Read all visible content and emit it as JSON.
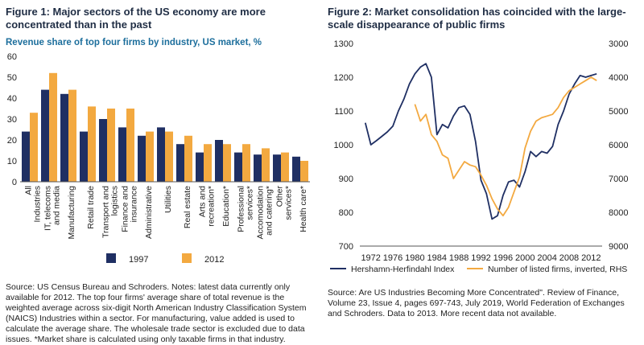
{
  "fig1": {
    "title": "Figure 1: Major sectors of the US economy are more concentrated than in the past",
    "subtitle": "Revenue share of top four firms by industry, US market, %",
    "source": "Source: US Census Bureau and Schroders. Notes: latest data currently only available for 2012. The top four firms' average share of total revenue is the weighted average across six-digit North American Industry Classification System (NAICS) Industries within a sector. For manufacturing, value added is used to calculate the average share. The wholesale trade sector is excluded due to data issues. *Market share is calculated using only taxable firms in that industry."
  },
  "fig2": {
    "title": "Figure 2: Market consolidation has coincided with the large-scale disappearance of public firms",
    "source": "Source: Are US Industries Becoming More Concentrated\". Review of Finance, Volume 23, Issue 4, pages 697-743, July 2019, World Federation of Exchanges and Schroders. Data to 2013. More recent data not available."
  },
  "colors": {
    "navy": "#1f2f63",
    "orange": "#f3a940",
    "title": "#1f2d44",
    "subtitle": "#1c6e9c"
  },
  "chart_data": [
    {
      "type": "bar",
      "title": "Figure 1: Major sectors of the US economy are more concentrated than in the past",
      "subtitle": "Revenue share of top four firms by industry, US market, %",
      "categories": [
        "All Industries",
        "IT, telecoms and media",
        "Manufacturing",
        "Retail trade",
        "Transport and logistics",
        "Finance and insurance",
        "Administrative",
        "Utilities",
        "Real estate",
        "Arts and recreation*",
        "Education*",
        "Professional services*",
        "Accomodation and catering*",
        "Other services*",
        "Health care*"
      ],
      "series": [
        {
          "name": "1997",
          "color": "#1f2f63",
          "values": [
            24,
            44,
            42,
            24,
            30,
            26,
            22,
            26,
            18,
            14,
            20,
            14,
            13,
            13,
            12
          ]
        },
        {
          "name": "2012",
          "color": "#f3a940",
          "values": [
            33,
            52,
            44,
            36,
            35,
            35,
            24,
            24,
            22,
            18,
            18,
            18,
            16,
            14,
            10
          ]
        }
      ],
      "ylim": [
        0,
        60
      ],
      "yticks": [
        0,
        10,
        20,
        30,
        40,
        50,
        60
      ],
      "grid": false,
      "legend": "bottom"
    },
    {
      "type": "line",
      "title": "Figure 2: Market consolidation has coincided with the large-scale disappearance of public firms",
      "xlim": [
        1970,
        2014
      ],
      "xticks": [
        1972,
        1976,
        1980,
        1984,
        1988,
        1992,
        1996,
        2000,
        2004,
        2008,
        2012
      ],
      "ylim_left": [
        700,
        1300
      ],
      "yticks_left": [
        700,
        800,
        900,
        1000,
        1100,
        1200,
        1300
      ],
      "ylim_right": [
        3000,
        9000
      ],
      "yticks_right": [
        3000,
        4000,
        5000,
        6000,
        7000,
        8000,
        9000
      ],
      "right_axis_inverted": true,
      "grid": false,
      "legend": "bottom",
      "series": [
        {
          "name": "Hershamn-Herfindahl Index",
          "axis": "left",
          "color": "#1f2f63",
          "x": [
            1971,
            1972,
            1973,
            1974,
            1975,
            1976,
            1977,
            1978,
            1979,
            1980,
            1981,
            1982,
            1983,
            1984,
            1985,
            1986,
            1987,
            1988,
            1989,
            1990,
            1991,
            1992,
            1993,
            1994,
            1995,
            1996,
            1997,
            1998,
            1999,
            2000,
            2001,
            2002,
            2003,
            2004,
            2005,
            2006,
            2007,
            2008,
            2009,
            2010,
            2011,
            2012,
            2013
          ],
          "y": [
            1065,
            1000,
            1012,
            1025,
            1038,
            1055,
            1100,
            1135,
            1180,
            1210,
            1230,
            1240,
            1200,
            1030,
            1060,
            1050,
            1085,
            1110,
            1115,
            1090,
            1010,
            895,
            855,
            780,
            790,
            850,
            890,
            895,
            875,
            920,
            980,
            965,
            980,
            975,
            995,
            1060,
            1100,
            1150,
            1180,
            1205,
            1200,
            1205,
            1210
          ]
        },
        {
          "name": "Number of listed firms, inverted, RHS",
          "axis": "right",
          "color": "#f3a940",
          "x": [
            1980,
            1981,
            1982,
            1983,
            1984,
            1985,
            1986,
            1987,
            1988,
            1989,
            1990,
            1991,
            1992,
            1993,
            1994,
            1995,
            1996,
            1997,
            1998,
            1999,
            2000,
            2001,
            2002,
            2003,
            2004,
            2005,
            2006,
            2007,
            2008,
            2009,
            2010,
            2011,
            2012,
            2013
          ],
          "y": [
            4800,
            5300,
            5100,
            5700,
            5900,
            6300,
            6400,
            7000,
            6750,
            6500,
            6600,
            6650,
            6900,
            7200,
            7600,
            7900,
            8100,
            7850,
            7400,
            6950,
            6100,
            5600,
            5300,
            5200,
            5150,
            5100,
            4900,
            4600,
            4400,
            4300,
            4200,
            4100,
            4000,
            4100
          ]
        }
      ]
    }
  ]
}
